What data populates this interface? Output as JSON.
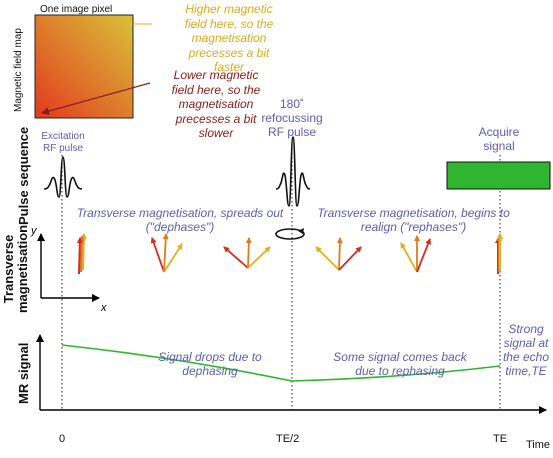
{
  "field_map": {
    "pixel_label": "One image pixel",
    "axis_label": "Magnetic field map",
    "higher_note": [
      "Higher magnetic",
      "field here, so the",
      "magnetisation",
      "precesses a bit",
      "faster"
    ],
    "lower_note": [
      "Lower magnetic",
      "field here, so the",
      "magnetisation",
      "precesses a bit",
      "slower"
    ],
    "colors": {
      "high": "#d9c23a",
      "low": "#e23a1e",
      "high_text": "#d9ac1a",
      "low_text": "#8a1d16"
    }
  },
  "pulse_sequence": {
    "row_label": "Pulse sequence",
    "excitation": [
      "Excitation",
      "RF pulse"
    ],
    "refocus": [
      "180˚",
      "refocussing",
      "RF pulse"
    ],
    "acquire": [
      "Acquire",
      "signal"
    ],
    "acquire_color": "#2fb52f"
  },
  "magnetisation": {
    "row_label": [
      "Transverse",
      "magnetisation"
    ],
    "axis_y": "y",
    "axis_x": "x",
    "dephase_text": [
      "Transverse magnetisation, spreads out",
      "(\"dephases\")"
    ],
    "rephase_text": [
      "Transverse magnetisation, begins to",
      "realign (\"rephases\")"
    ]
  },
  "signal": {
    "row_label": "MR signal",
    "drop_text": [
      "Signal drops due to",
      "dephasing"
    ],
    "back_text": [
      "Some signal comes back",
      "due to rephasing"
    ],
    "echo_text": [
      "Strong",
      "signal at",
      "the echo",
      "time,TE"
    ],
    "curve_color": "#2fb52f"
  },
  "time_axis": {
    "label": "Time",
    "ticks": [
      "0",
      "TE/2",
      "TE"
    ]
  }
}
